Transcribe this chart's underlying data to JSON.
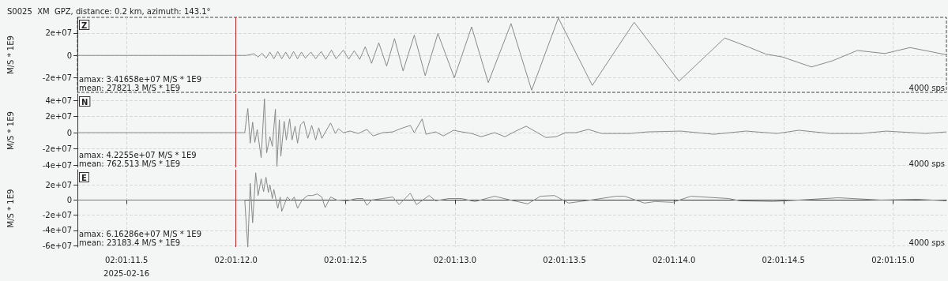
{
  "chart_data": [
    {
      "type": "line",
      "title": "S0025  XM  GPZ, distance: 0.2 km, azimuth: 143.1°",
      "ylabel": "M/S * 1E9",
      "annotations": [
        "Z",
        "amax: 3.41658e+07 M/S * 1E9",
        "mean: 27821.3 M/S * 1E9",
        "4000 sps"
      ],
      "x": [
        "2025-02-16T02:01:11.276",
        "2025-02-16T02:01:12.047",
        "2025-02-16T02:01:12.083",
        "2025-02-16T02:01:12.101",
        "2025-02-16T02:01:12.119",
        "2025-02-16T02:01:12.137",
        "2025-02-16T02:01:12.155",
        "2025-02-16T02:01:12.173",
        "2025-02-16T02:01:12.191",
        "2025-02-16T02:01:12.209",
        "2025-02-16T02:01:12.227",
        "2025-02-16T02:01:12.245",
        "2025-02-16T02:01:12.263",
        "2025-02-16T02:01:12.281",
        "2025-02-16T02:01:12.299",
        "2025-02-16T02:01:12.317",
        "2025-02-16T02:01:12.342",
        "2025-02-16T02:01:12.364",
        "2025-02-16T02:01:12.389",
        "2025-02-16T02:01:12.410",
        "2025-02-16T02:01:12.436",
        "2025-02-16T02:01:12.457",
        "2025-02-16T02:01:12.490",
        "2025-02-16T02:01:12.515",
        "2025-02-16T02:01:12.540",
        "2025-02-16T02:01:12.565",
        "2025-02-16T02:01:12.590",
        "2025-02-16T02:01:12.619",
        "2025-02-16T02:01:12.652",
        "2025-02-16T02:01:12.688",
        "2025-02-16T02:01:12.724",
        "2025-02-16T02:01:12.763",
        "2025-02-16T02:01:12.814",
        "2025-02-16T02:01:12.864",
        "2025-02-16T02:01:12.922",
        "2025-02-16T02:01:12.997",
        "2025-02-16T02:01:13.076",
        "2025-02-16T02:01:13.152",
        "2025-02-16T02:01:13.256",
        "2025-02-16T02:01:13.350",
        "2025-02-16T02:01:13.472",
        "2025-02-16T02:01:13.627",
        "2025-02-16T02:01:13.818",
        "2025-02-16T02:01:14.023",
        "2025-02-16T02:01:14.232",
        "2025-02-16T02:01:14.340",
        "2025-02-16T02:01:14.419",
        "2025-02-16T02:01:14.495",
        "2025-02-16T02:01:14.628",
        "2025-02-16T02:01:14.725",
        "2025-02-16T02:01:14.837",
        "2025-02-16T02:01:14.963",
        "2025-02-16T02:01:15.078",
        "2025-02-16T02:01:15.244"
      ],
      "series": [
        {
          "color": "#888888",
          "values": [
            0,
            0,
            1500000.0,
            -1500000.0,
            2000000.0,
            -2500000.0,
            3000000.0,
            -3000000.0,
            3500000.0,
            -3000000.0,
            3000000.0,
            -3000000.0,
            3500000.0,
            -3000000.0,
            3000000.0,
            -2500000.0,
            3000000.0,
            -3000000.0,
            3500000.0,
            -3500000.0,
            4700000.0,
            -3000000.0,
            4700000.0,
            -3300000.0,
            4200000.0,
            -3500000.0,
            7700000.0,
            -7100000.0,
            11300000.0,
            -9500000.0,
            15100000.0,
            -13900000.0,
            18100000.0,
            -18100000.0,
            19600000.0,
            -19900000.0,
            25500000.0,
            -24300000.0,
            28500000.0,
            -31100000.0,
            33400000.0,
            -26800000.0,
            29600000.0,
            -23000000.0,
            15600000.0,
            7500000.0,
            1200000.0,
            -1400000.0,
            -10300000.0,
            -4700000.0,
            4400000.0,
            1700000.0,
            7000000.0,
            600000.0
          ]
        }
      ],
      "xlim": [
        "2025-02-16T02:01:11.276",
        "2025-02-16T02:01:15.244"
      ],
      "xticks": [
        "2025-02-16T02:01:11.500",
        "2025-02-16T02:01:12.000",
        "2025-02-16T02:01:12.500",
        "2025-02-16T02:01:13.000",
        "2025-02-16T02:01:13.500",
        "2025-02-16T02:01:14.000",
        "2025-02-16T02:01:14.500",
        "2025-02-16T02:01:15.000"
      ],
      "ylim": [
        -33000000.0,
        34000000.0
      ],
      "yticks": [
        {
          "value": -20000000.0,
          "label": "-2e+07"
        },
        {
          "value": 0,
          "label": "0"
        },
        {
          "value": 20000000.0,
          "label": "2e+07"
        }
      ],
      "ref_lines": [
        {
          "axis": "x",
          "value": "2025-02-16T02:01:12.000",
          "color": "#b22222"
        }
      ],
      "grid": true,
      "marker": "none",
      "tick_labels": "y"
    },
    {
      "type": "line",
      "ylabel": "M/S * 1E9",
      "annotations": [
        "N",
        "amax: 4.2255e+07 M/S * 1E9",
        "mean: 762.513 M/S * 1E9",
        "4000 sps"
      ],
      "x": [
        "2025-02-16T02:01:11.276",
        "2025-02-16T02:01:12.040",
        "2025-02-16T02:01:12.054",
        "2025-02-16T02:01:12.065",
        "2025-02-16T02:01:12.076",
        "2025-02-16T02:01:12.086",
        "2025-02-16T02:01:12.097",
        "2025-02-16T02:01:12.115",
        "2025-02-16T02:01:12.130",
        "2025-02-16T02:01:12.140",
        "2025-02-16T02:01:12.155",
        "2025-02-16T02:01:12.166",
        "2025-02-16T02:01:12.180",
        "2025-02-16T02:01:12.187",
        "2025-02-16T02:01:12.198",
        "2025-02-16T02:01:12.205",
        "2025-02-16T02:01:12.220",
        "2025-02-16T02:01:12.230",
        "2025-02-16T02:01:12.245",
        "2025-02-16T02:01:12.256",
        "2025-02-16T02:01:12.270",
        "2025-02-16T02:01:12.281",
        "2025-02-16T02:01:12.295",
        "2025-02-16T02:01:12.310",
        "2025-02-16T02:01:12.328",
        "2025-02-16T02:01:12.346",
        "2025-02-16T02:01:12.364",
        "2025-02-16T02:01:12.378",
        "2025-02-16T02:01:12.392",
        "2025-02-16T02:01:12.432",
        "2025-02-16T02:01:12.454",
        "2025-02-16T02:01:12.468",
        "2025-02-16T02:01:12.490",
        "2025-02-16T02:01:12.522",
        "2025-02-16T02:01:12.558",
        "2025-02-16T02:01:12.598",
        "2025-02-16T02:01:12.626",
        "2025-02-16T02:01:12.670",
        "2025-02-16T02:01:12.716",
        "2025-02-16T02:01:12.752",
        "2025-02-16T02:01:12.796",
        "2025-02-16T02:01:12.814",
        "2025-02-16T02:01:12.850",
        "2025-02-16T02:01:12.868",
        "2025-02-16T02:01:12.911",
        "2025-02-16T02:01:12.947",
        "2025-02-16T02:01:12.994",
        "2025-02-16T02:01:13.030",
        "2025-02-16T02:01:13.076",
        "2025-02-16T02:01:13.120",
        "2025-02-16T02:01:13.181",
        "2025-02-16T02:01:13.228",
        "2025-02-16T02:01:13.278",
        "2025-02-16T02:01:13.325",
        "2025-02-16T02:01:13.415",
        "2025-02-16T02:01:13.462",
        "2025-02-16T02:01:13.505",
        "2025-02-16T02:01:13.552",
        "2025-02-16T02:01:13.609",
        "2025-02-16T02:01:13.670",
        "2025-02-16T02:01:13.800",
        "2025-02-16T02:01:13.879",
        "2025-02-16T02:01:14.030",
        "2025-02-16T02:01:14.182",
        "2025-02-16T02:01:14.329",
        "2025-02-16T02:01:14.470",
        "2025-02-16T02:01:14.570",
        "2025-02-16T02:01:14.714",
        "2025-02-16T02:01:14.855",
        "2025-02-16T02:01:14.970",
        "2025-02-16T02:01:15.150",
        "2025-02-16T02:01:15.244"
      ],
      "series": [
        {
          "color": "#888888",
          "values": [
            0,
            0,
            30000000.0,
            -13000000.0,
            13000000.0,
            -12000000.0,
            4000000.0,
            -31000000.0,
            42000000.0,
            -25000000.0,
            -5000000.0,
            -17000000.0,
            29000000.0,
            -42000000.0,
            16000000.0,
            -29000000.0,
            14000000.0,
            -9000000.0,
            17000000.0,
            -9000000.0,
            8000000.0,
            -13000000.0,
            10000000.0,
            14000000.0,
            -7000000.0,
            9000000.0,
            -9000000.0,
            6000000.0,
            -7000000.0,
            12000000.0,
            -1000000.0,
            5000000.0,
            0,
            2000000.0,
            -1000000.0,
            4000000.0,
            -4000000.0,
            0,
            1000000.0,
            5000000.0,
            9000000.0,
            0,
            17000000.0,
            -2000000.0,
            1000000.0,
            -4000000.0,
            3000000.0,
            1000000.0,
            -1000000.0,
            -5000000.0,
            0,
            -5000000.0,
            2000000.0,
            8000000.0,
            -6000000.0,
            -5000000.0,
            0,
            0,
            4000000.0,
            -1000000.0,
            -1000000.0,
            1000000.0,
            2000000.0,
            -2000000.0,
            2000000.0,
            -1000000.0,
            3000000.0,
            -1000000.0,
            -1000000.0,
            2000000.0,
            -1000000.0,
            1000000.0
          ]
        }
      ],
      "xlim": [
        "2025-02-16T02:01:11.276",
        "2025-02-16T02:01:15.244"
      ],
      "xticks": [
        "2025-02-16T02:01:11.500",
        "2025-02-16T02:01:12.000",
        "2025-02-16T02:01:12.500",
        "2025-02-16T02:01:13.000",
        "2025-02-16T02:01:13.500",
        "2025-02-16T02:01:14.000",
        "2025-02-16T02:01:14.500",
        "2025-02-16T02:01:15.000"
      ],
      "ylim": [
        -43000000.0,
        48000000.0
      ],
      "yticks": [
        {
          "value": -40000000.0,
          "label": "-4e+07"
        },
        {
          "value": -20000000.0,
          "label": "-2e+07"
        },
        {
          "value": 0,
          "label": "0"
        },
        {
          "value": 20000000.0,
          "label": "2e+07"
        },
        {
          "value": 40000000.0,
          "label": "4e+07"
        }
      ],
      "ref_lines": [
        {
          "axis": "x",
          "value": "2025-02-16T02:01:12.000",
          "color": "#b22222"
        }
      ],
      "grid": true,
      "marker": "none",
      "tick_labels": "y"
    },
    {
      "type": "line",
      "ylabel": "M/S * 1E9",
      "annotations": [
        "E",
        "amax: 6.16286e+07 M/S * 1E9",
        "mean: 23183.4 M/S * 1E9",
        "4000 sps"
      ],
      "x": [
        "2025-02-16T02:01:11.276",
        "2025-02-16T02:01:12.040",
        "2025-02-16T02:01:12.054",
        "2025-02-16T02:01:12.065",
        "2025-02-16T02:01:12.076",
        "2025-02-16T02:01:12.090",
        "2025-02-16T02:01:12.101",
        "2025-02-16T02:01:12.115",
        "2025-02-16T02:01:12.126",
        "2025-02-16T02:01:12.137",
        "2025-02-16T02:01:12.148",
        "2025-02-16T02:01:12.155",
        "2025-02-16T02:01:12.166",
        "2025-02-16T02:01:12.173",
        "2025-02-16T02:01:12.191",
        "2025-02-16T02:01:12.202",
        "2025-02-16T02:01:12.209",
        "2025-02-16T02:01:12.234",
        "2025-02-16T02:01:12.252",
        "2025-02-16T02:01:12.266",
        "2025-02-16T02:01:12.281",
        "2025-02-16T02:01:12.302",
        "2025-02-16T02:01:12.328",
        "2025-02-16T02:01:12.349",
        "2025-02-16T02:01:12.371",
        "2025-02-16T02:01:12.392",
        "2025-02-16T02:01:12.407",
        "2025-02-16T02:01:12.432",
        "2025-02-16T02:01:12.461",
        "2025-02-16T02:01:12.508",
        "2025-02-16T02:01:12.551",
        "2025-02-16T02:01:12.580",
        "2025-02-16T02:01:12.598",
        "2025-02-16T02:01:12.619",
        "2025-02-16T02:01:12.670",
        "2025-02-16T02:01:12.716",
        "2025-02-16T02:01:12.745",
        "2025-02-16T02:01:12.796",
        "2025-02-16T02:01:12.824",
        "2025-02-16T02:01:12.882",
        "2025-02-16T02:01:12.911",
        "2025-02-16T02:01:12.972",
        "2025-02-16T02:01:13.030",
        "2025-02-16T02:01:13.091",
        "2025-02-16T02:01:13.181",
        "2025-02-16T02:01:13.253",
        "2025-02-16T02:01:13.332",
        "2025-02-16T02:01:13.390",
        "2025-02-16T02:01:13.454",
        "2025-02-16T02:01:13.519",
        "2025-02-16T02:01:13.620",
        "2025-02-16T02:01:13.735",
        "2025-02-16T02:01:13.775",
        "2025-02-16T02:01:13.865",
        "2025-02-16T02:01:13.915",
        "2025-02-16T02:01:13.994",
        "2025-02-16T02:01:14.077",
        "2025-02-16T02:01:14.250",
        "2025-02-16T02:01:14.300",
        "2025-02-16T02:01:14.452",
        "2025-02-16T02:01:14.750",
        "2025-02-16T02:01:14.945",
        "2025-02-16T02:01:15.110",
        "2025-02-16T02:01:15.244"
      ],
      "series": [
        {
          "color": "#888888",
          "values": [
            0,
            0,
            -62000000.0,
            22000000.0,
            -30000000.0,
            36000000.0,
            6000000.0,
            28000000.0,
            11000000.0,
            30000000.0,
            10000000.0,
            20000000.0,
            2000000.0,
            14000000.0,
            -11000000.0,
            4000000.0,
            -15000000.0,
            4000000.0,
            -1000000.0,
            4000000.0,
            -11000000.0,
            0,
            6000000.0,
            6000000.0,
            8000000.0,
            4000000.0,
            -10000000.0,
            4000000.0,
            0,
            -1000000.0,
            2000000.0,
            2000000.0,
            -7000000.0,
            0,
            2000000.0,
            4000000.0,
            -6000000.0,
            9000000.0,
            -6000000.0,
            6000000.0,
            -1000000.0,
            2000000.0,
            2000000.0,
            -2000000.0,
            5000000.0,
            0,
            -5000000.0,
            5000000.0,
            6000000.0,
            -4000000.0,
            0,
            5000000.0,
            5000000.0,
            -4000000.0,
            -2000000.0,
            -3000000.0,
            5000000.0,
            2000000.0,
            -1000000.0,
            -2000000.0,
            3000000.0,
            0,
            1000000.0,
            -1000000.0
          ]
        }
      ],
      "xlim": [
        "2025-02-16T02:01:11.276",
        "2025-02-16T02:01:15.244"
      ],
      "xticks": [
        {
          "value": "2025-02-16T02:01:11.500",
          "label": "02:01:11.5\n2025-02-16"
        },
        {
          "value": "2025-02-16T02:01:12.000",
          "label": "02:01:12.0"
        },
        {
          "value": "2025-02-16T02:01:12.500",
          "label": "02:01:12.5"
        },
        {
          "value": "2025-02-16T02:01:13.000",
          "label": "02:01:13.0"
        },
        {
          "value": "2025-02-16T02:01:13.500",
          "label": "02:01:13.5"
        },
        {
          "value": "2025-02-16T02:01:14.000",
          "label": "02:01:14.0"
        },
        {
          "value": "2025-02-16T02:01:14.500",
          "label": "02:01:14.5"
        },
        {
          "value": "2025-02-16T02:01:15.000",
          "label": "02:01:15.0"
        }
      ],
      "ylim": [
        -62000000.0,
        40000000.0
      ],
      "yticks": [
        {
          "value": -60000000.0,
          "label": "-6e+07"
        },
        {
          "value": -40000000.0,
          "label": "-4e+07"
        },
        {
          "value": -20000000.0,
          "label": "-2e+07"
        },
        {
          "value": 0,
          "label": "0"
        },
        {
          "value": 20000000.0,
          "label": "2e+07"
        }
      ],
      "ref_lines": [
        {
          "axis": "x",
          "value": "2025-02-16T02:01:12.000",
          "color": "#b22222"
        }
      ],
      "grid": true,
      "marker": "none"
    }
  ]
}
